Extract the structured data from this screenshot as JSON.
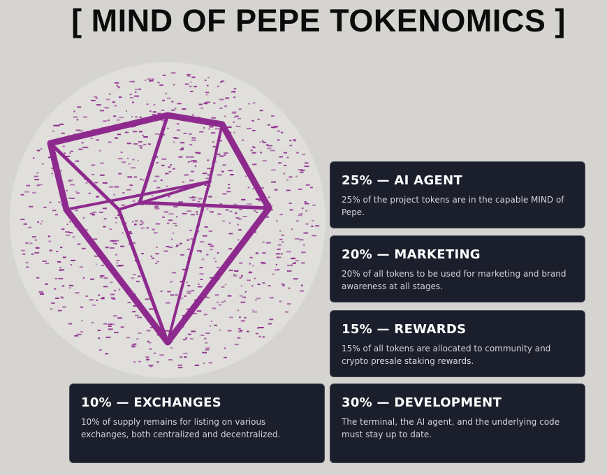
{
  "header": {
    "title": "[ MIND OF PEPE TOKENOMICS ]"
  },
  "cards": [
    {
      "title": "25% — AI AGENT",
      "text": "25% of the project tokens are in the capable MIND of Pepe."
    },
    {
      "title": "20% — MARKETING",
      "text": "20% of all tokens to be used for marketing and brand awareness at all stages."
    },
    {
      "title": "15% — REWARDS",
      "text": "15% of all tokens are allocated to community and crypto presale staking rewards."
    },
    {
      "title": "10% — EXCHANGES",
      "text": "10% of supply remains for listing on various exchanges, both centralized and decentralized."
    },
    {
      "title": "30% — DEVELOPMENT",
      "text": "The terminal, the AI agent, and the underlying code must stay up to date."
    }
  ]
}
